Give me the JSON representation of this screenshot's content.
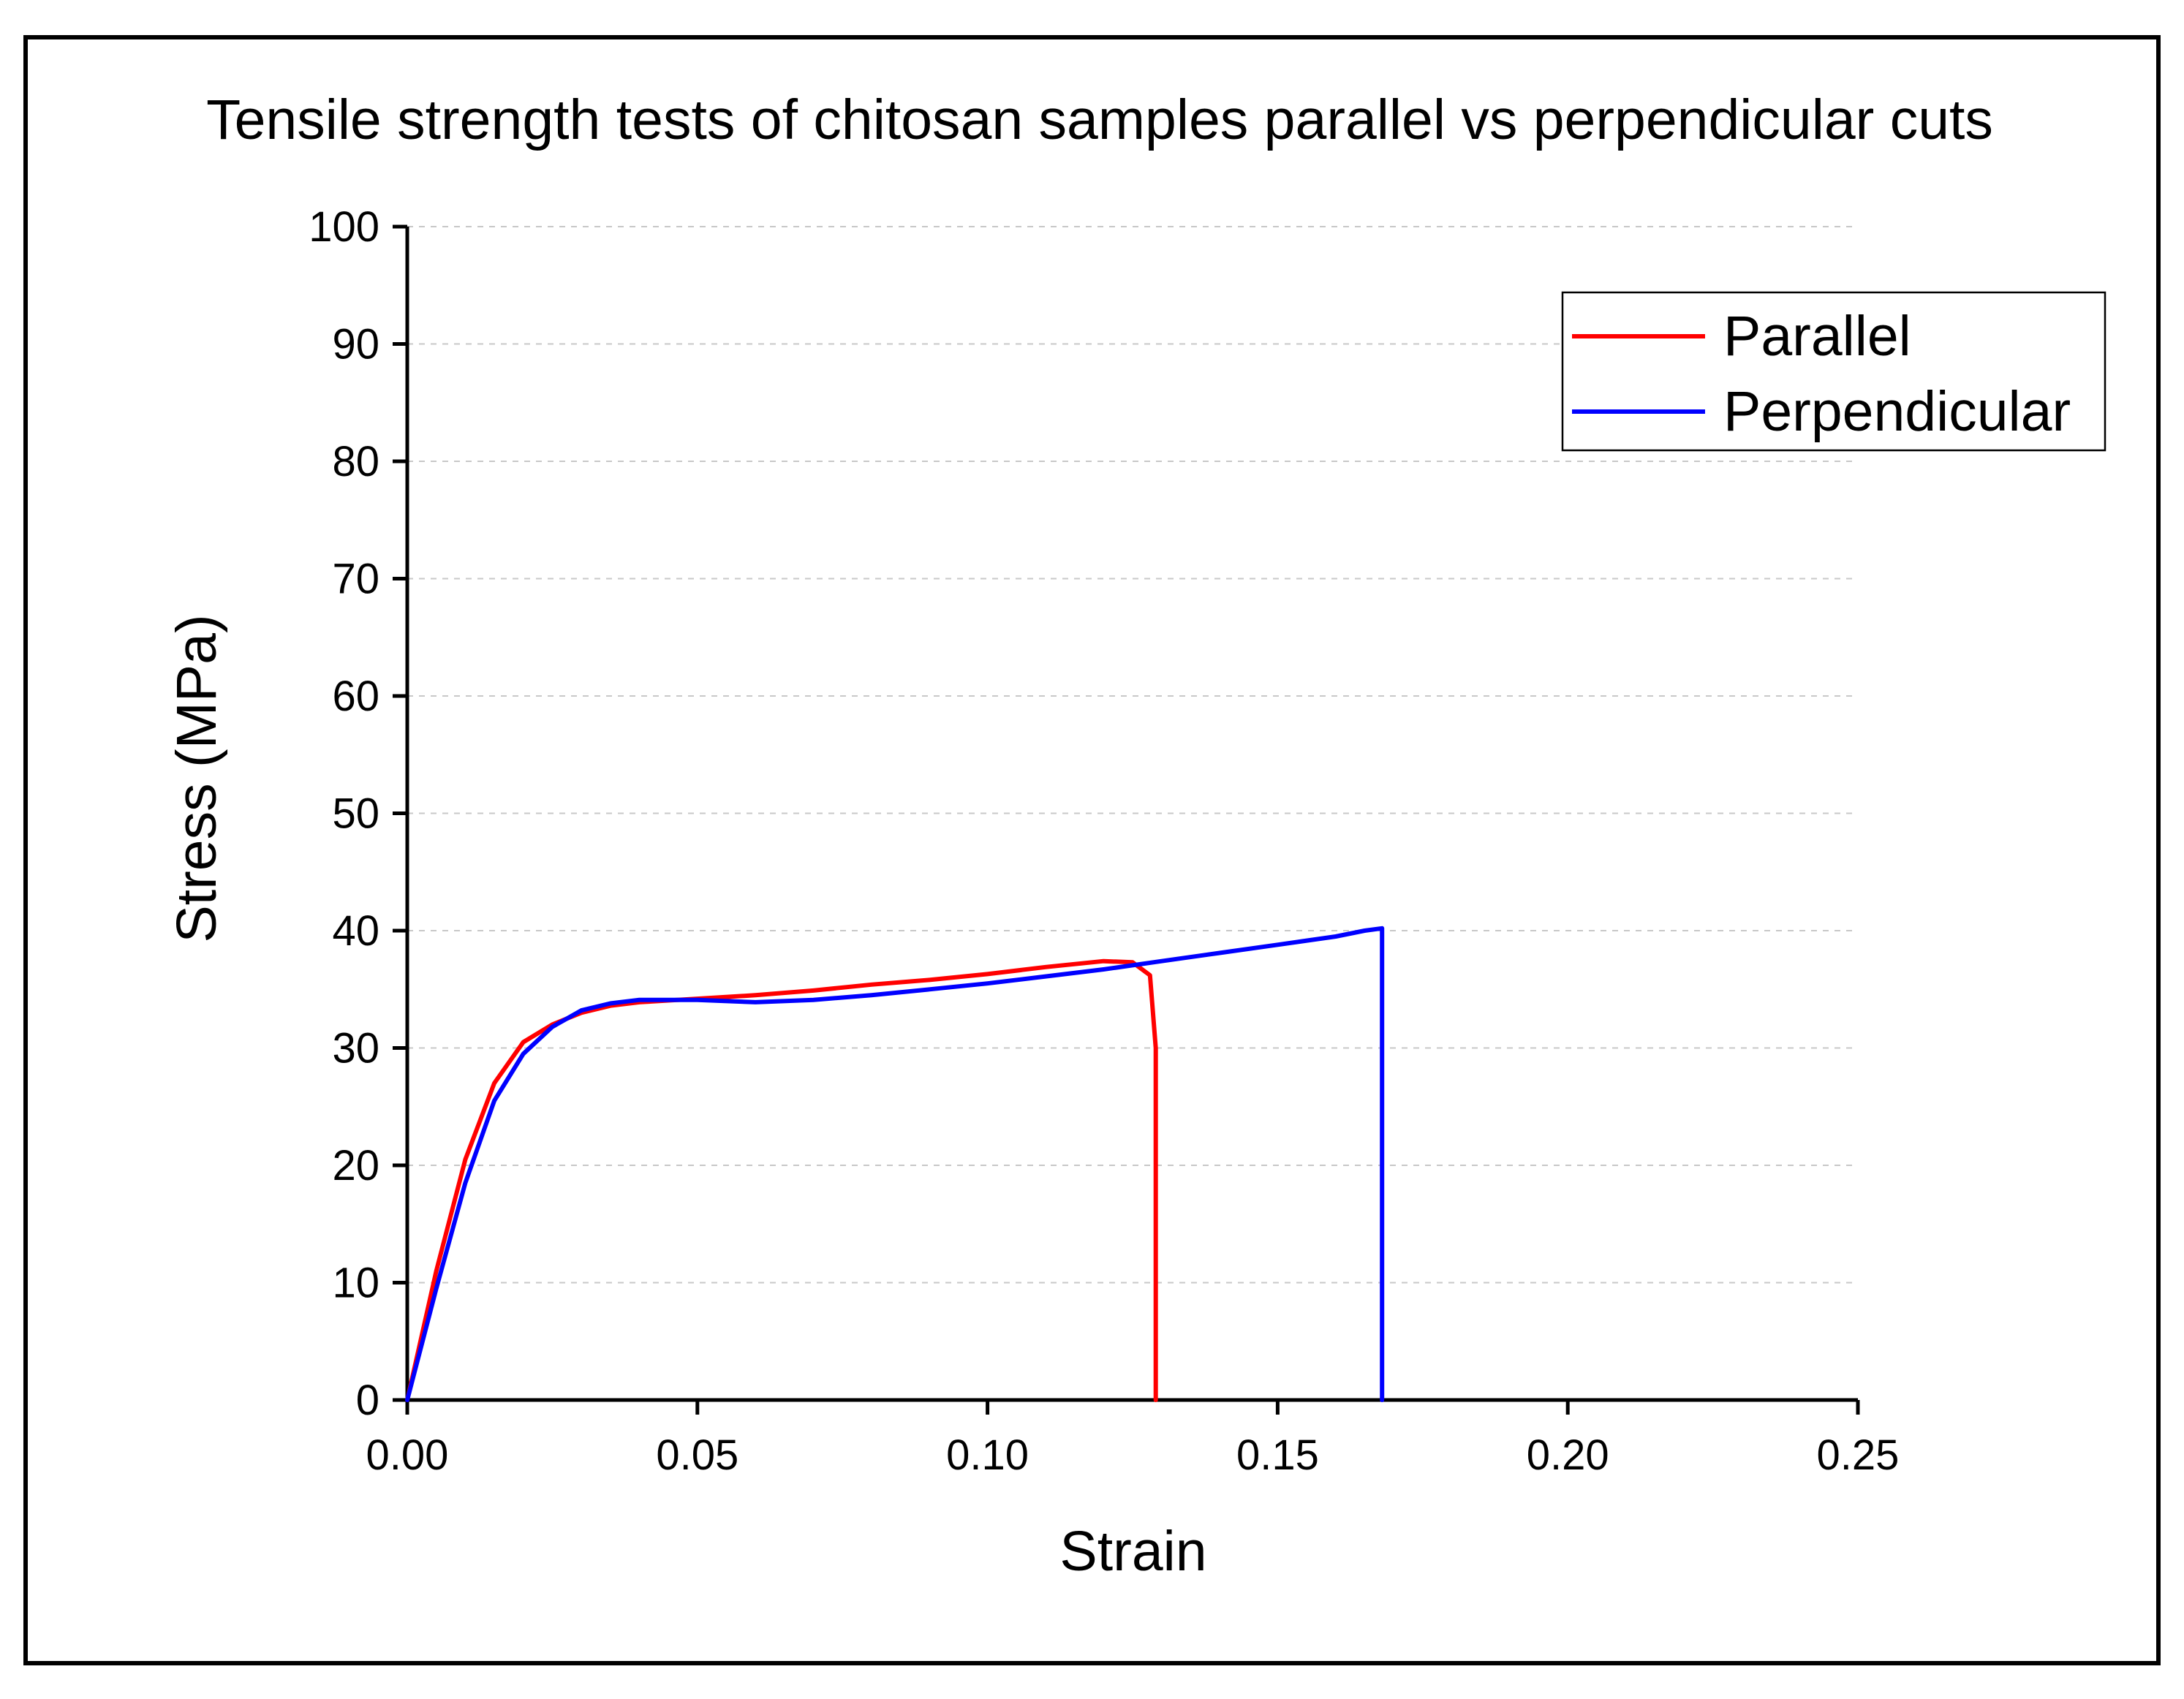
{
  "chart_data": {
    "type": "line",
    "title": "Tensile strength tests of chitosan samples parallel vs perpendicular cuts",
    "xlabel": "Strain",
    "ylabel": "Stress (MPa)",
    "xlim": [
      0,
      0.25
    ],
    "ylim": [
      0,
      100
    ],
    "xticks": [
      0.0,
      0.05,
      0.1,
      0.15,
      0.2,
      0.25
    ],
    "xtick_labels": [
      "0.00",
      "0.05",
      "0.10",
      "0.15",
      "0.20",
      "0.25"
    ],
    "yticks": [
      0,
      10,
      20,
      30,
      40,
      50,
      60,
      70,
      80,
      90,
      100
    ],
    "ytick_labels": [
      "0",
      "10",
      "20",
      "30",
      "40",
      "50",
      "60",
      "70",
      "80",
      "90",
      "100"
    ],
    "grid": true,
    "legend_position": "top-right",
    "series": [
      {
        "name": "Parallel",
        "color": "#ff0000",
        "x": [
          0,
          0.005,
          0.01,
          0.015,
          0.02,
          0.025,
          0.03,
          0.035,
          0.04,
          0.05,
          0.06,
          0.07,
          0.08,
          0.09,
          0.1,
          0.11,
          0.12,
          0.125,
          0.128,
          0.129,
          0.129
        ],
        "y": [
          0,
          11,
          20.5,
          27,
          30.5,
          32,
          33,
          33.6,
          33.9,
          34.2,
          34.5,
          34.9,
          35.4,
          35.8,
          36.3,
          36.9,
          37.4,
          37.3,
          36.2,
          30,
          0
        ]
      },
      {
        "name": "Perpendicular",
        "color": "#0000ff",
        "x": [
          0,
          0.005,
          0.01,
          0.015,
          0.02,
          0.025,
          0.03,
          0.035,
          0.04,
          0.05,
          0.06,
          0.07,
          0.08,
          0.09,
          0.1,
          0.11,
          0.12,
          0.13,
          0.14,
          0.15,
          0.16,
          0.165,
          0.168,
          0.168
        ],
        "y": [
          0,
          9.5,
          18.5,
          25.5,
          29.5,
          31.8,
          33.2,
          33.8,
          34.1,
          34.1,
          33.9,
          34.1,
          34.5,
          35,
          35.5,
          36.1,
          36.7,
          37.4,
          38.1,
          38.8,
          39.5,
          40.0,
          40.2,
          0
        ]
      }
    ]
  }
}
